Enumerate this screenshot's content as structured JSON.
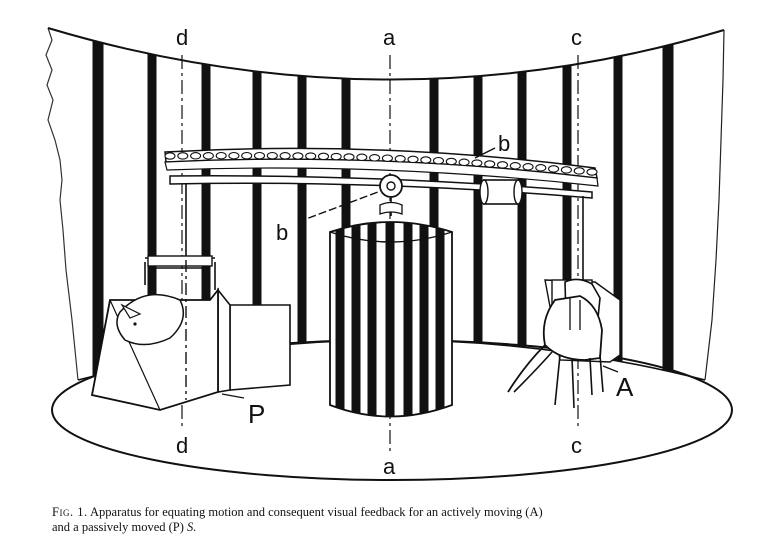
{
  "figure": {
    "labels": {
      "d_top": "d",
      "a_top": "a",
      "c_top": "c",
      "d_bottom": "d",
      "a_bottom": "a",
      "c_bottom": "c",
      "b_upper": "b",
      "b_lower": "b",
      "P": "P",
      "A": "A"
    }
  },
  "caption": {
    "fig_num": "Fig. 1.",
    "line1": "Apparatus for equating motion and consequent visual feedback for an actively moving (A)",
    "line2_start": "and a passively moved (P)",
    "line2_end": "S."
  }
}
